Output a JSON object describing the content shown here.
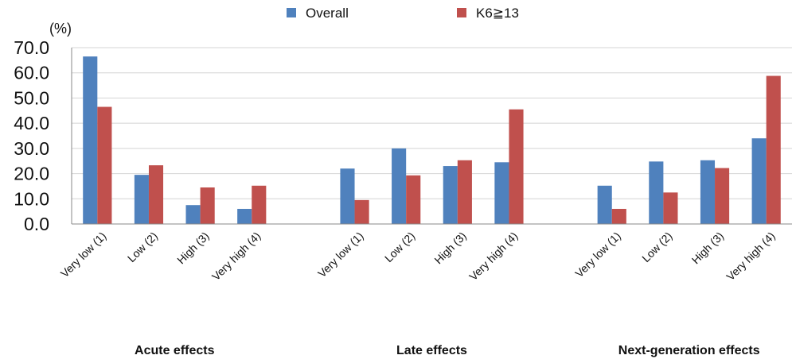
{
  "chart_data": {
    "type": "bar",
    "y_unit": "(%)",
    "ylim": [
      0,
      70
    ],
    "yticks": [
      "0.0",
      "10.0",
      "20.0",
      "30.0",
      "40.0",
      "50.0",
      "60.0",
      "70.0"
    ],
    "grid": true,
    "legend_position": "top-center",
    "groups": [
      {
        "label": "Acute effects",
        "categories": [
          "Very low (1)",
          "Low (2)",
          "High (3)",
          "Very high (4)"
        ]
      },
      {
        "label": "Late effects",
        "categories": [
          "Very low (1)",
          "Low (2)",
          "High (3)",
          "Very high (4)"
        ]
      },
      {
        "label": "Next-generation effects",
        "categories": [
          "Very low (1)",
          "Low (2)",
          "High (3)",
          "Very high (4)"
        ]
      }
    ],
    "series": [
      {
        "name": "Overall",
        "color": "#4f81bd",
        "values": [
          66.5,
          19.5,
          7.5,
          6.0,
          22.0,
          30.0,
          23.0,
          24.5,
          15.2,
          24.8,
          25.3,
          34.0
        ]
      },
      {
        "name": "K6≧13",
        "color": "#c0504d",
        "values": [
          46.5,
          23.3,
          14.5,
          15.2,
          9.5,
          19.3,
          25.3,
          45.5,
          6.0,
          12.5,
          22.2,
          58.8
        ]
      }
    ]
  }
}
